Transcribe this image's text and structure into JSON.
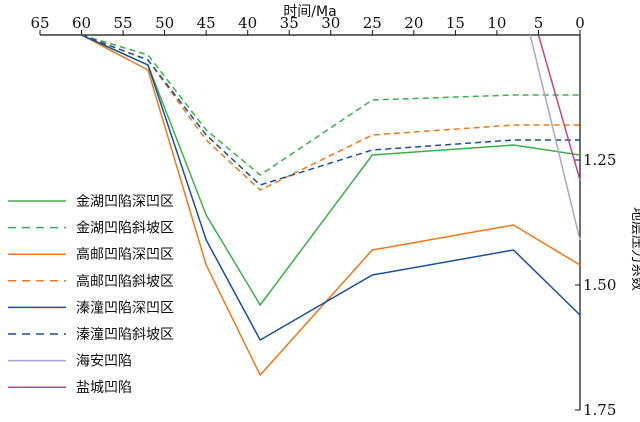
{
  "chart_data": {
    "type": "line",
    "xlabel": "时间/Ma",
    "ylabel": "地层压力系数",
    "xlim": [
      65,
      0
    ],
    "ylim": [
      1.0,
      1.75
    ],
    "x_ticks": [
      65,
      60,
      55,
      50,
      45,
      40,
      35,
      30,
      25,
      20,
      15,
      10,
      5,
      0
    ],
    "y_ticks": [
      1.25,
      1.5,
      1.75
    ],
    "x_tick_labels": [
      "65",
      "60",
      "55",
      "50",
      "45",
      "40",
      "35",
      "30",
      "25",
      "20",
      "15",
      "10",
      "5",
      "0"
    ],
    "y_tick_labels": [
      "1.25",
      "1.50",
      "1.75"
    ],
    "legend_position": "left",
    "series": [
      {
        "name": "金湖凹陷深凹区",
        "color": "#3cb04a",
        "dash": "solid",
        "x": [
          60,
          52,
          45,
          38.5,
          25,
          8,
          0
        ],
        "y": [
          1.0,
          1.06,
          1.36,
          1.54,
          1.24,
          1.22,
          1.24
        ]
      },
      {
        "name": "金湖凹陷斜坡区",
        "color": "#3cb04a",
        "dash": "dashed",
        "x": [
          60,
          52,
          45,
          38.5,
          25,
          8,
          0
        ],
        "y": [
          1.0,
          1.04,
          1.19,
          1.28,
          1.13,
          1.12,
          1.12
        ]
      },
      {
        "name": "高邮凹陷深凹区",
        "color": "#f07818",
        "dash": "solid",
        "x": [
          60,
          52,
          45,
          38.5,
          25,
          8,
          0
        ],
        "y": [
          1.0,
          1.07,
          1.46,
          1.68,
          1.43,
          1.38,
          1.46
        ]
      },
      {
        "name": "高邮凹陷斜坡区",
        "color": "#f07818",
        "dash": "dashed",
        "x": [
          60,
          52,
          45,
          38.5,
          25,
          8,
          0
        ],
        "y": [
          1.0,
          1.05,
          1.21,
          1.31,
          1.2,
          1.18,
          1.18
        ]
      },
      {
        "name": "溱潼凹陷深凹区",
        "color": "#1a4fa0",
        "dash": "solid",
        "x": [
          60,
          52,
          45,
          38.5,
          25,
          8,
          0
        ],
        "y": [
          1.0,
          1.06,
          1.41,
          1.61,
          1.48,
          1.43,
          1.56
        ]
      },
      {
        "name": "溱潼凹陷斜坡区",
        "color": "#1a4fa0",
        "dash": "dashed",
        "x": [
          60,
          52,
          45,
          38.5,
          25,
          8,
          0
        ],
        "y": [
          1.0,
          1.05,
          1.2,
          1.3,
          1.23,
          1.21,
          1.21
        ]
      },
      {
        "name": "海安凹陷",
        "color": "#a8a4d4",
        "dash": "solid",
        "x": [
          6,
          0
        ],
        "y": [
          1.0,
          1.41
        ]
      },
      {
        "name": "盐城凹陷",
        "color": "#c2458e",
        "dash": "solid",
        "x": [
          5,
          0
        ],
        "y": [
          1.0,
          1.29
        ]
      }
    ]
  }
}
